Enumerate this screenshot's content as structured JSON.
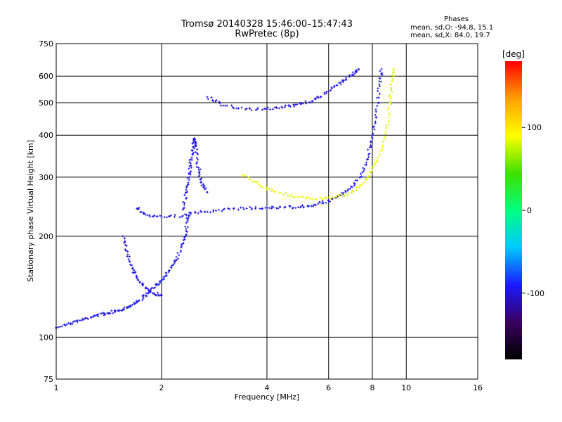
{
  "header": {
    "title_line1": "Tromsø 20140328 15:46:00–15:47:43",
    "title_line2": "RwPretec (8p)"
  },
  "phases_box": {
    "heading": "Phases",
    "line_o": "mean, sd,O: -94.8, 15.1",
    "line_x": "mean, sd,X:  84.0, 19.7"
  },
  "colorbar": {
    "unit_label": "[deg]",
    "tick_labels": [
      "100",
      "0",
      "-100"
    ],
    "tick_values": [
      100,
      0,
      -100
    ],
    "range": [
      -180,
      180
    ],
    "stops": [
      "#000000",
      "#3a0060",
      "#1a1aff",
      "#00c8ff",
      "#00ff80",
      "#40e000",
      "#ffff00",
      "#ffa000",
      "#ff0000"
    ]
  },
  "chart_data": {
    "type": "scatter",
    "xlabel": "Frequency [MHz]",
    "ylabel": "Stationary phase Virtual Height [km]",
    "xscale": "log",
    "yscale": "log",
    "xlim": [
      1,
      16
    ],
    "ylim": [
      75,
      750
    ],
    "xticks": [
      1,
      2,
      4,
      6,
      8,
      10,
      16
    ],
    "yticks": [
      75,
      100,
      200,
      300,
      400,
      500,
      600,
      750
    ],
    "grid": true,
    "color_by": "phase (deg)",
    "series": [
      {
        "trace": "E / F1 low-height trace (O)",
        "phase": -95,
        "points": [
          [
            1.0,
            107
          ],
          [
            1.1,
            110
          ],
          [
            1.2,
            113
          ],
          [
            1.3,
            116
          ],
          [
            1.4,
            118
          ],
          [
            1.5,
            120
          ],
          [
            1.6,
            123
          ],
          [
            1.7,
            127
          ],
          [
            1.8,
            133
          ],
          [
            1.9,
            140
          ],
          [
            2.0,
            148
          ],
          [
            2.1,
            158
          ],
          [
            2.2,
            170
          ],
          [
            2.3,
            190
          ],
          [
            2.35,
            210
          ],
          [
            2.4,
            235
          ]
        ]
      },
      {
        "trace": "Upper rising trace to cusp (O)",
        "phase": -100,
        "points": [
          [
            1.55,
            200
          ],
          [
            1.6,
            180
          ],
          [
            1.65,
            160
          ],
          [
            1.7,
            150
          ],
          [
            1.8,
            140
          ],
          [
            1.9,
            135
          ],
          [
            2.0,
            133
          ]
        ]
      },
      {
        "trace": "F cusp near 2.4 MHz (O)",
        "phase": -100,
        "points": [
          [
            2.3,
            240
          ],
          [
            2.35,
            270
          ],
          [
            2.4,
            300
          ],
          [
            2.42,
            330
          ],
          [
            2.45,
            360
          ],
          [
            2.48,
            390
          ],
          [
            2.5,
            370
          ],
          [
            2.55,
            320
          ],
          [
            2.6,
            290
          ],
          [
            2.7,
            270
          ]
        ]
      },
      {
        "trace": "F2 O-mode trace",
        "phase": -95,
        "points": [
          [
            1.7,
            242
          ],
          [
            1.8,
            232
          ],
          [
            2.0,
            228
          ],
          [
            2.3,
            230
          ],
          [
            2.6,
            236
          ],
          [
            3.0,
            240
          ],
          [
            3.5,
            242
          ],
          [
            4.0,
            243
          ],
          [
            4.5,
            244
          ],
          [
            5.0,
            245
          ],
          [
            5.5,
            248
          ],
          [
            6.0,
            255
          ],
          [
            6.5,
            265
          ],
          [
            7.0,
            280
          ],
          [
            7.5,
            310
          ],
          [
            7.8,
            350
          ],
          [
            8.0,
            400
          ],
          [
            8.2,
            470
          ],
          [
            8.4,
            560
          ],
          [
            8.5,
            630
          ]
        ]
      },
      {
        "trace": "F2 second-hop / high trace",
        "phase": -100,
        "points": [
          [
            2.7,
            520
          ],
          [
            3.0,
            490
          ],
          [
            3.5,
            480
          ],
          [
            4.0,
            478
          ],
          [
            4.5,
            485
          ],
          [
            5.0,
            495
          ],
          [
            5.5,
            512
          ],
          [
            6.0,
            540
          ],
          [
            6.5,
            575
          ],
          [
            7.0,
            605
          ],
          [
            7.3,
            630
          ]
        ]
      },
      {
        "trace": "F2 X-mode trace",
        "phase": 84,
        "points": [
          [
            3.4,
            305
          ],
          [
            3.8,
            285
          ],
          [
            4.2,
            272
          ],
          [
            4.8,
            262
          ],
          [
            5.5,
            258
          ],
          [
            6.2,
            260
          ],
          [
            7.0,
            270
          ],
          [
            7.6,
            290
          ],
          [
            8.0,
            315
          ],
          [
            8.4,
            350
          ],
          [
            8.8,
            420
          ],
          [
            9.0,
            500
          ],
          [
            9.1,
            580
          ],
          [
            9.2,
            630
          ]
        ]
      }
    ]
  }
}
